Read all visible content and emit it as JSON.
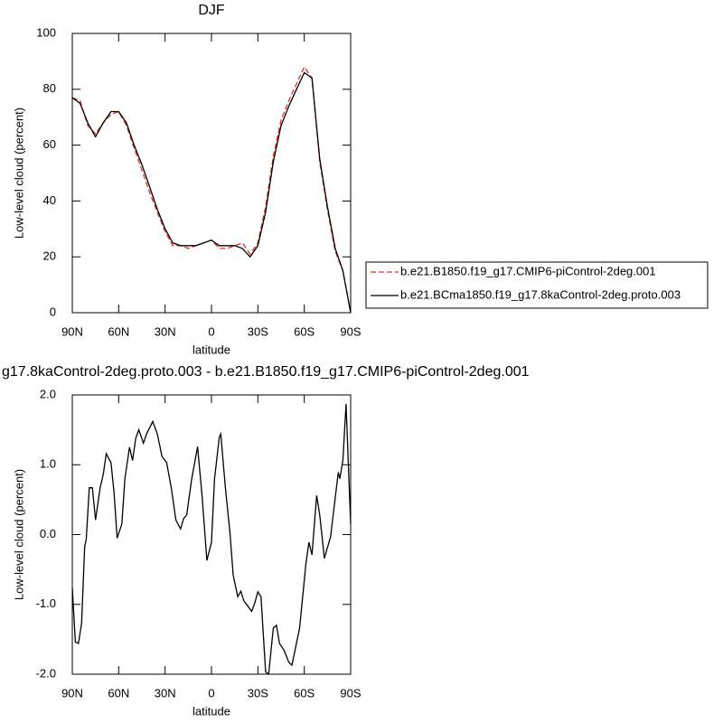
{
  "chart_data": [
    {
      "type": "line",
      "title": "DJF",
      "xlabel": "latitude",
      "ylabel": "Low-level cloud (percent)",
      "x": [
        90,
        85,
        80,
        75,
        70,
        65,
        60,
        55,
        50,
        45,
        40,
        35,
        30,
        25,
        20,
        15,
        10,
        5,
        0,
        -5,
        -10,
        -15,
        -20,
        -25,
        -30,
        -35,
        -40,
        -45,
        -50,
        -55,
        -60,
        -65,
        -70,
        -75,
        -80,
        -85,
        -90
      ],
      "series": [
        {
          "name": "b.e21.B1850.f19_g17.CMIP6-piControl-2deg.001",
          "color": "#e0302a",
          "dash": "dashed",
          "values": [
            77,
            76,
            67,
            64,
            68,
            71,
            72,
            67,
            59,
            51,
            43,
            36,
            29,
            24,
            24,
            23,
            24,
            25,
            26,
            23,
            23,
            24,
            25,
            21,
            25,
            38,
            56,
            69,
            76,
            82,
            88,
            84,
            54,
            37,
            22,
            15,
            0
          ]
        },
        {
          "name": "b.e21.BCma1850.f19_g17.8kaControl-2deg.proto.003",
          "color": "#000000",
          "dash": "solid",
          "values": [
            77,
            75,
            68,
            63,
            68,
            72,
            72,
            68,
            60,
            53,
            45,
            37,
            30,
            25,
            24,
            24,
            24,
            25,
            26,
            24,
            24,
            24,
            23,
            20,
            24,
            36,
            54,
            67,
            74,
            80,
            86,
            84,
            55,
            38,
            23,
            15,
            0
          ]
        }
      ],
      "xlim": [
        90,
        -90
      ],
      "xticks": [
        {
          "value": 90,
          "label": "90N"
        },
        {
          "value": 60,
          "label": "60N"
        },
        {
          "value": 30,
          "label": "30N"
        },
        0,
        {
          "value": -30,
          "label": "30S"
        },
        {
          "value": -60,
          "label": "60S"
        },
        {
          "value": -90,
          "label": "90S"
        }
      ],
      "ylim": [
        0,
        100
      ],
      "yticks": [
        0,
        20,
        40,
        60,
        80,
        100
      ]
    },
    {
      "type": "line",
      "title": "g17.8kaControl-2deg.proto.003 - b.e21.B1850.f19_g17.CMIP6-piControl-2deg.001",
      "xlabel": "latitude",
      "ylabel": "Low-level cloud (percent)",
      "x": [
        90,
        88,
        86,
        84,
        82,
        81,
        79,
        77,
        75,
        72,
        70,
        68,
        65,
        63,
        61,
        58,
        56,
        53,
        51,
        49,
        47,
        44,
        42,
        38,
        35,
        32,
        29,
        26,
        23,
        20,
        18,
        16,
        13,
        9,
        6,
        3,
        0,
        -2,
        -5,
        -6,
        -9,
        -12,
        -14,
        -17,
        -19,
        -21,
        -24,
        -26,
        -28,
        -30,
        -32,
        -35,
        -37,
        -40,
        -42,
        -44,
        -47,
        -50,
        -52,
        -57,
        -61,
        -63,
        -65,
        -68,
        -70,
        -73,
        -77,
        -82,
        -83,
        -85,
        -87,
        -90
      ],
      "values": [
        -0.76,
        -1.54,
        -1.56,
        -1.27,
        -0.17,
        -0.07,
        0.67,
        0.67,
        0.21,
        0.67,
        0.86,
        1.16,
        1.03,
        0.6,
        -0.05,
        0.15,
        0.8,
        1.25,
        1.06,
        1.38,
        1.5,
        1.31,
        1.44,
        1.62,
        1.44,
        1.12,
        1.03,
        0.67,
        0.21,
        0.08,
        0.23,
        0.28,
        0.77,
        1.26,
        0.54,
        -0.37,
        -0.11,
        0.8,
        1.39,
        1.44,
        0.67,
        0.02,
        -0.58,
        -0.89,
        -0.81,
        -0.95,
        -1.04,
        -1.1,
        -0.98,
        -0.82,
        -0.89,
        -1.97,
        -2.0,
        -1.34,
        -1.3,
        -1.56,
        -1.66,
        -1.83,
        -1.87,
        -1.34,
        -0.43,
        -0.11,
        -0.29,
        0.56,
        0.28,
        -0.34,
        -0.03,
        0.89,
        0.8,
        1.06,
        1.87,
        0.15
      ],
      "color": "#000000",
      "xlim": [
        90,
        -90
      ],
      "xticks": [
        {
          "value": 90,
          "label": "90N"
        },
        {
          "value": 60,
          "label": "60N"
        },
        {
          "value": 30,
          "label": "30N"
        },
        0,
        {
          "value": -30,
          "label": "30S"
        },
        {
          "value": -60,
          "label": "60S"
        },
        {
          "value": -90,
          "label": "90S"
        }
      ],
      "ylim": [
        -2,
        2
      ],
      "yticks": [
        {
          "value": 2,
          "label": "2.0"
        },
        {
          "value": 1,
          "label": "1.0"
        },
        {
          "value": 0,
          "label": "0.0"
        },
        {
          "value": -1,
          "label": "-1.0"
        },
        {
          "value": -2,
          "label": "-2.0"
        }
      ]
    }
  ]
}
